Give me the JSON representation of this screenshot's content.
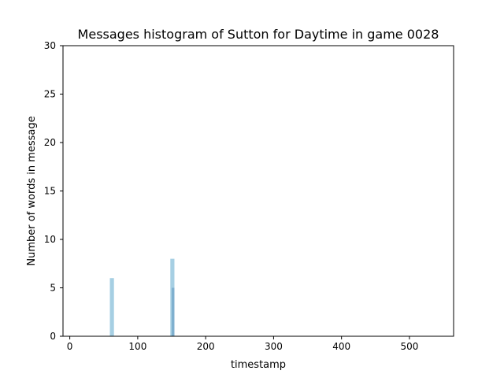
{
  "chart_data": {
    "type": "bar",
    "title": "Messages histogram of Sutton for Daytime in game 0028",
    "xlabel": "timestamp",
    "ylabel": "Number of words in message",
    "xlim": [
      -10,
      565
    ],
    "ylim": [
      0,
      30
    ],
    "xticks": [
      0,
      100,
      200,
      300,
      400,
      500
    ],
    "yticks": [
      0,
      5,
      10,
      15,
      20,
      25,
      30
    ],
    "grid": false,
    "bars": [
      {
        "x": 62,
        "width": 6,
        "value": 6,
        "color": "#a6cfe3"
      },
      {
        "x": 151,
        "width": 6,
        "value": 8,
        "color": "#a6cfe3"
      },
      {
        "x": 152,
        "width": 4,
        "value": 5,
        "color": "#7fb0cf"
      }
    ],
    "colors": {
      "bar_light": "#a6cfe3",
      "bar_dark": "#7fb0cf"
    }
  }
}
